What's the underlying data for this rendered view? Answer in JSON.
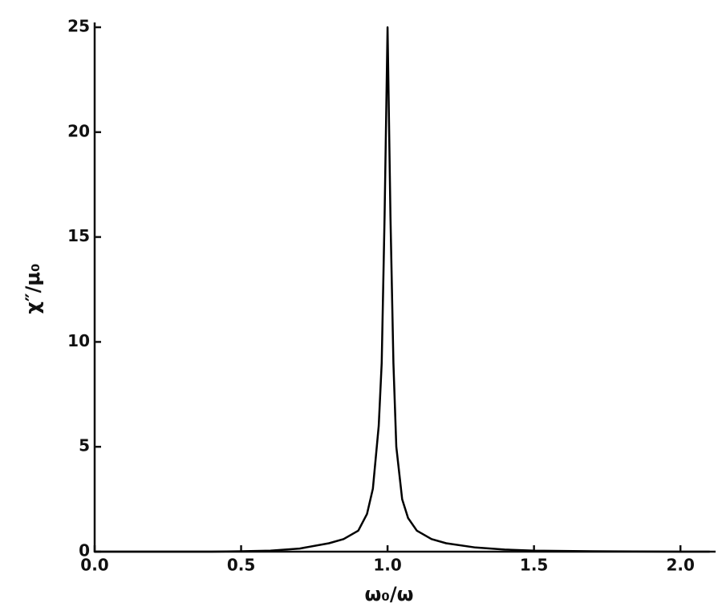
{
  "chart_data": {
    "type": "line",
    "x_label": "ω₀/ω",
    "y_label": "χ″/μ₀",
    "x": [
      0.0,
      0.2,
      0.4,
      0.5,
      0.6,
      0.7,
      0.8,
      0.85,
      0.9,
      0.93,
      0.95,
      0.97,
      0.98,
      0.99,
      1.0,
      1.01,
      1.02,
      1.03,
      1.05,
      1.07,
      1.1,
      1.15,
      1.2,
      1.3,
      1.4,
      1.5,
      1.7,
      2.0,
      2.1
    ],
    "values": [
      0,
      0,
      0,
      0.02,
      0.05,
      0.15,
      0.4,
      0.6,
      1.0,
      1.8,
      3,
      6,
      9,
      16,
      25,
      16,
      9,
      5,
      2.5,
      1.6,
      1.0,
      0.6,
      0.4,
      0.2,
      0.1,
      0.05,
      0.02,
      0,
      0
    ],
    "color": "#000000",
    "xlim": [
      0,
      2.12
    ],
    "ylim": [
      0,
      25
    ],
    "xticks": [
      {
        "value": 0,
        "label": "0.0"
      },
      {
        "value": 0.5,
        "label": "0.5"
      },
      {
        "value": 1,
        "label": "1.0"
      },
      {
        "value": 1.5,
        "label": "1.5"
      },
      {
        "value": 2,
        "label": "2.0"
      }
    ],
    "yticks": [
      0,
      5,
      10,
      15,
      20,
      25
    ],
    "grid": false
  }
}
